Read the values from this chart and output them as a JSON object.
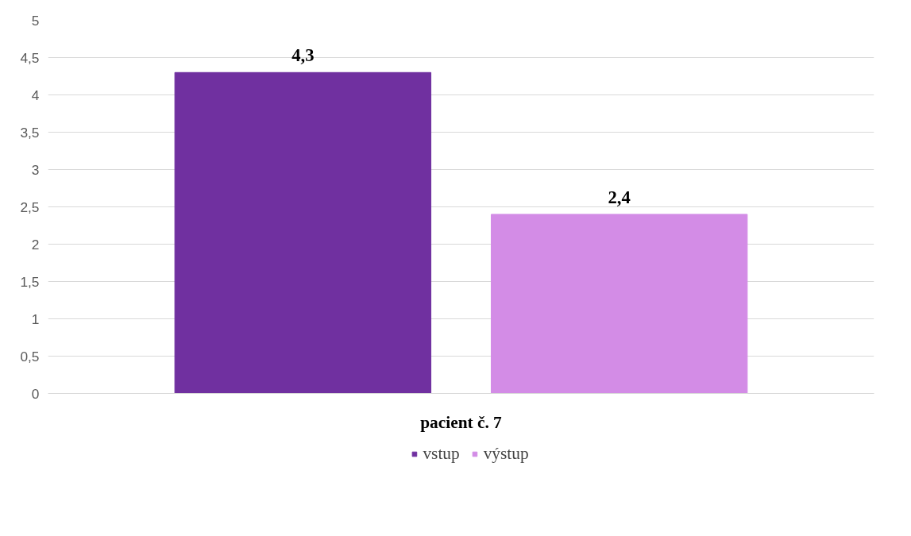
{
  "chart_data": {
    "type": "bar",
    "categories": [
      "pacient č. 7"
    ],
    "series": [
      {
        "name": "vstup",
        "color": "#7030a0",
        "values": [
          4.3
        ],
        "value_labels": [
          "4,3"
        ]
      },
      {
        "name": "výstup",
        "color": "#d38ce6",
        "values": [
          2.4
        ],
        "value_labels": [
          "2,4"
        ]
      }
    ],
    "ylim": [
      0,
      5
    ],
    "yticks": [
      0,
      {
        "value": 0.5,
        "label": "0,5"
      },
      1,
      {
        "value": 1.5,
        "label": "1,5"
      },
      2,
      {
        "value": 2.5,
        "label": "2,5"
      },
      3,
      {
        "value": 3.5,
        "label": "3,5"
      },
      4,
      {
        "value": 4.5,
        "label": "4,5"
      },
      5
    ],
    "grid": "y",
    "legend": "bottom"
  }
}
